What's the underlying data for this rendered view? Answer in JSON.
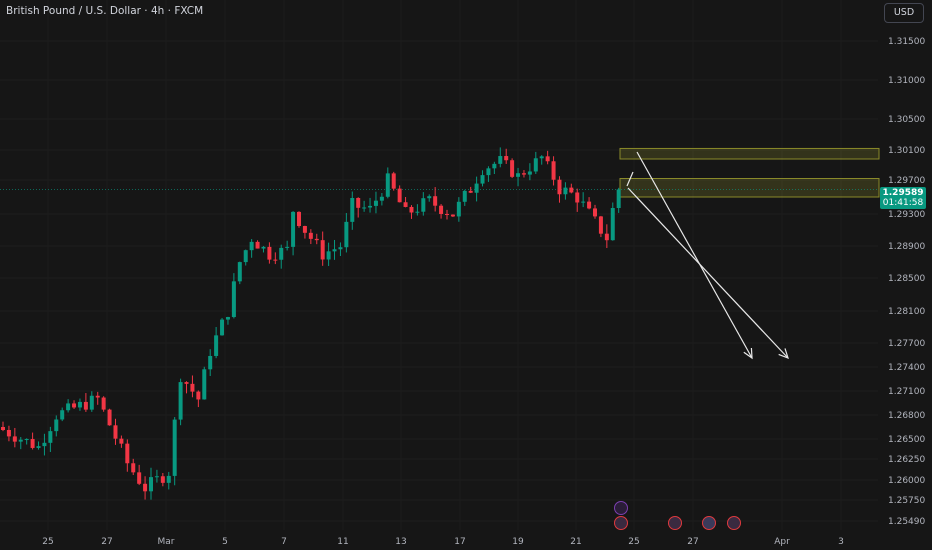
{
  "header": {
    "title": "British Pound / U.S. Dollar · 4h · FXCM",
    "currency_button": "USD"
  },
  "price_axis": {
    "labels": [
      "1.31500",
      "1.31000",
      "1.30500",
      "1.30100",
      "1.29700",
      "1.29300",
      "1.28900",
      "1.28500",
      "1.28100",
      "1.27700",
      "1.27400",
      "1.27100",
      "1.26800",
      "1.26500",
      "1.26250",
      "1.26000",
      "1.25750",
      "1.25490"
    ]
  },
  "current_price": {
    "value": "1.29589",
    "countdown": "01:41:58",
    "color": "#089981"
  },
  "time_axis": {
    "labels": [
      "25",
      "27",
      "Mar",
      "5",
      "7",
      "11",
      "13",
      "17",
      "19",
      "21",
      "25",
      "27",
      "Apr",
      "3"
    ]
  },
  "colors": {
    "up": "#089981",
    "down": "#f23645",
    "zone": "#8a8a2a"
  },
  "zones": [
    {
      "top": 1.3012,
      "bottom": 1.2998
    },
    {
      "top": 1.2972,
      "bottom": 1.295
    }
  ],
  "price_path": [
    [
      0,
      1.2665
    ],
    [
      7,
      1.264
    ],
    [
      10,
      1.268
    ],
    [
      17,
      1.27
    ],
    [
      22,
      1.262
    ],
    [
      25,
      1.259
    ],
    [
      29,
      1.261
    ],
    [
      31,
      1.273
    ],
    [
      34,
      1.27
    ],
    [
      36,
      1.276
    ],
    [
      39,
      1.281
    ],
    [
      41,
      1.287
    ],
    [
      43,
      1.29
    ],
    [
      46,
      1.288
    ],
    [
      49,
      1.2885
    ],
    [
      50,
      1.2935
    ],
    [
      52,
      1.291
    ],
    [
      55,
      1.288
    ],
    [
      58,
      1.289
    ],
    [
      60,
      1.294
    ],
    [
      63,
      1.2935
    ],
    [
      66,
      1.297
    ],
    [
      69,
      1.293
    ],
    [
      73,
      1.2945
    ],
    [
      77,
      1.293
    ],
    [
      80,
      1.296
    ],
    [
      82,
      1.2985
    ],
    [
      85,
      1.2995
    ],
    [
      88,
      1.2975
    ],
    [
      92,
      1.3
    ],
    [
      95,
      1.296
    ],
    [
      98,
      1.295
    ],
    [
      101,
      1.292
    ],
    [
      103,
      1.29
    ],
    [
      104,
      1.2935
    ],
    [
      105,
      1.29589
    ]
  ],
  "events": [
    {
      "icon": "flash-icon"
    },
    {
      "icon": "uk-flag-icon"
    },
    {
      "icon": "uk-flag-icon"
    },
    {
      "icon": "us-flag-icon"
    },
    {
      "icon": "uk-flag-icon"
    }
  ]
}
